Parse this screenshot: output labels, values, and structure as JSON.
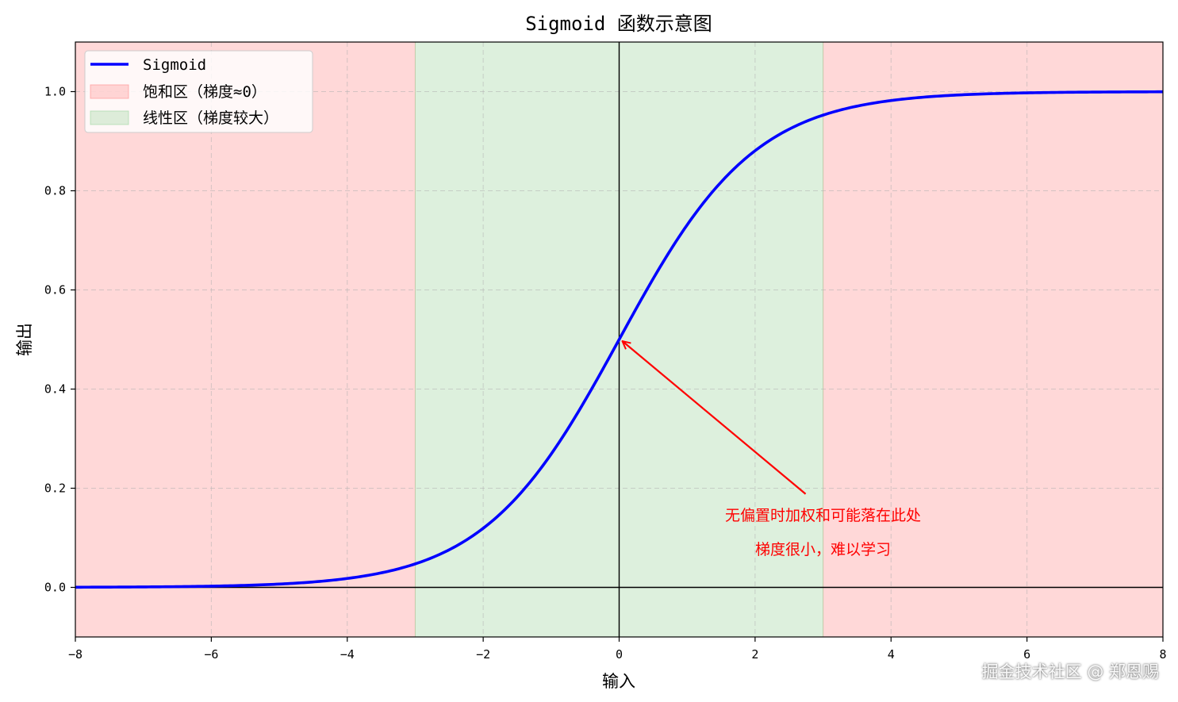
{
  "chart_data": {
    "type": "line",
    "title": "Sigmoid 函数示意图",
    "xlabel": "输入",
    "ylabel": "输出",
    "xlim": [
      -8,
      8
    ],
    "ylim": [
      -0.1,
      1.1
    ],
    "x_ticks": [
      -8,
      -6,
      -4,
      -2,
      0,
      2,
      4,
      6,
      8
    ],
    "x_tick_labels": [
      "−8",
      "−6",
      "−4",
      "−2",
      "0",
      "2",
      "4",
      "6",
      "8"
    ],
    "y_ticks": [
      0.0,
      0.2,
      0.4,
      0.6,
      0.8,
      1.0
    ],
    "y_tick_labels": [
      "0.0",
      "0.2",
      "0.4",
      "0.6",
      "0.8",
      "1.0"
    ],
    "grid": true,
    "legend_position": "top-left",
    "series": [
      {
        "name": "Sigmoid",
        "function": "1/(1+exp(-x))",
        "color": "#0000ff",
        "x": [
          -8,
          -7,
          -6,
          -5,
          -4,
          -3,
          -2,
          -1,
          0,
          1,
          2,
          3,
          4,
          5,
          6,
          7,
          8
        ],
        "y": [
          0.0003,
          0.0009,
          0.0025,
          0.0067,
          0.018,
          0.0474,
          0.1192,
          0.2689,
          0.5,
          0.7311,
          0.8808,
          0.9526,
          0.982,
          0.9933,
          0.9975,
          0.9991,
          0.9997
        ]
      }
    ],
    "regions": [
      {
        "label": "饱和区（梯度≈0）",
        "color": "#ff9999",
        "ranges": [
          [
            -8,
            -3
          ],
          [
            3,
            8
          ]
        ]
      },
      {
        "label": "线性区（梯度较大）",
        "color": "#a6d8a6",
        "ranges": [
          [
            -3,
            3
          ]
        ]
      }
    ],
    "reference_lines": {
      "horizontal": 0,
      "vertical": 0
    },
    "annotation": {
      "lines": [
        "无偏置时加权和可能落在此处",
        "梯度很小，难以学习"
      ],
      "text_x": 3.0,
      "text_y": 0.15,
      "arrow_target": [
        0,
        0.5
      ],
      "color": "#ff0000"
    }
  },
  "watermark": "掘金技术社区 @ 郑恩赐"
}
